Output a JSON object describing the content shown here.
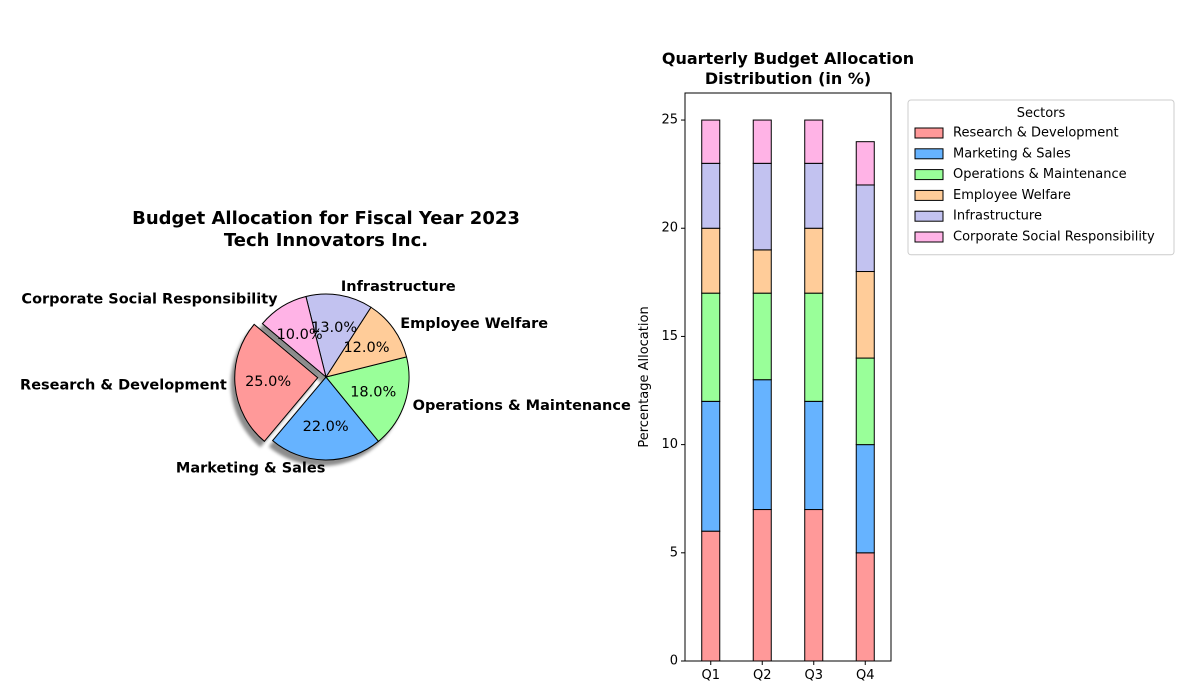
{
  "chart_data": [
    {
      "type": "pie",
      "title": "Budget Allocation for Fiscal Year 2023\nTech Innovators Inc.",
      "start_angle_deg": 140,
      "exploded": [
        "Research & Development"
      ],
      "shadow": true,
      "slices": [
        {
          "label": "Research & Development",
          "value": 25.0,
          "pct_label": "25.0%",
          "color": "#ff9999"
        },
        {
          "label": "Marketing & Sales",
          "value": 22.0,
          "pct_label": "22.0%",
          "color": "#66b3ff"
        },
        {
          "label": "Operations & Maintenance",
          "value": 18.0,
          "pct_label": "18.0%",
          "color": "#99ff99"
        },
        {
          "label": "Employee Welfare",
          "value": 12.0,
          "pct_label": "12.0%",
          "color": "#ffcc99"
        },
        {
          "label": "Infrastructure",
          "value": 13.0,
          "pct_label": "13.0%",
          "color": "#c2c2f0"
        },
        {
          "label": "Corporate Social Responsibility",
          "value": 10.0,
          "pct_label": "10.0%",
          "color": "#ffb3e6"
        }
      ]
    },
    {
      "type": "bar",
      "stacked": true,
      "title": "Quarterly Budget Allocation\nDistribution (in %)",
      "xlabel": "",
      "ylabel": "Percentage Allocation",
      "categories": [
        "Q1",
        "Q2",
        "Q3",
        "Q4"
      ],
      "ylim": [
        0,
        26.25
      ],
      "yticks": [
        0,
        5,
        10,
        15,
        20,
        25
      ],
      "legend_title": "Sectors",
      "legend_position": "outside-upper-right",
      "series": [
        {
          "name": "Research & Development",
          "values": [
            6,
            7,
            7,
            5
          ],
          "color": "#ff9999"
        },
        {
          "name": "Marketing & Sales",
          "values": [
            6,
            6,
            5,
            5
          ],
          "color": "#66b3ff"
        },
        {
          "name": "Operations & Maintenance",
          "values": [
            5,
            4,
            5,
            4
          ],
          "color": "#99ff99"
        },
        {
          "name": "Employee Welfare",
          "values": [
            3,
            2,
            3,
            4
          ],
          "color": "#ffcc99"
        },
        {
          "name": "Infrastructure",
          "values": [
            3,
            4,
            3,
            4
          ],
          "color": "#c2c2f0"
        },
        {
          "name": "Corporate Social Responsibility",
          "values": [
            2,
            2,
            2,
            2
          ],
          "color": "#ffb3e6"
        }
      ]
    }
  ]
}
